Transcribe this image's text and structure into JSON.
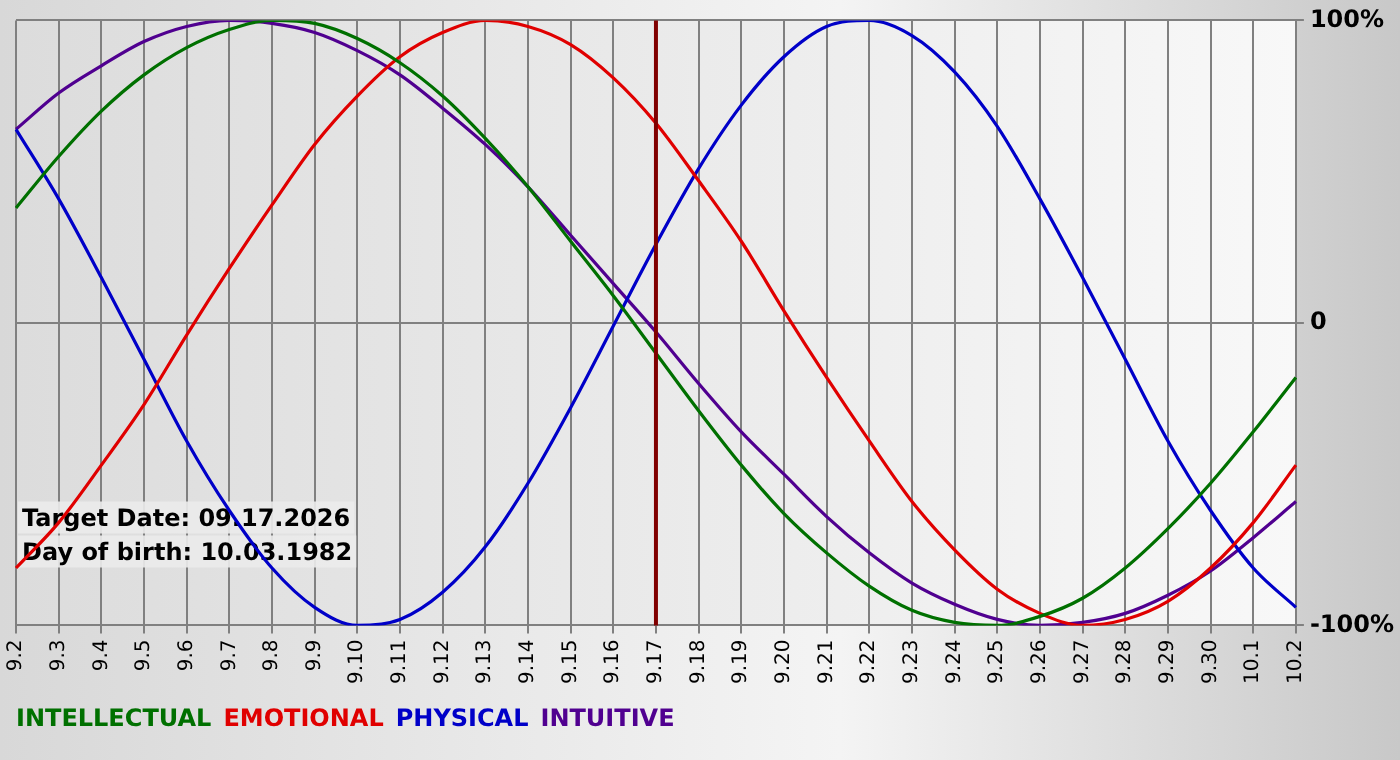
{
  "chart_data": {
    "type": "line",
    "categories": [
      "9.2",
      "9.3",
      "9.4",
      "9.5",
      "9.6",
      "9.7",
      "9.8",
      "9.9",
      "9.10",
      "9.11",
      "9.12",
      "9.13",
      "9.14",
      "9.15",
      "9.16",
      "9.17",
      "9.18",
      "9.19",
      "9.20",
      "9.21",
      "9.22",
      "9.23",
      "9.24",
      "9.25",
      "9.26",
      "9.27",
      "9.28",
      "9.29",
      "9.30",
      "10.1",
      "10.2"
    ],
    "series": [
      {
        "name": "INTELLECTUAL",
        "color": "#007000",
        "values": [
          38,
          55,
          70,
          82,
          91,
          97,
          100,
          99,
          94,
          86,
          75,
          61,
          45,
          27,
          9,
          -10,
          -29,
          -47,
          -63,
          -76,
          -87,
          -95,
          -99,
          -100,
          -97,
          -91,
          -81,
          -68,
          -53,
          -36,
          -18
        ]
      },
      {
        "name": "EMOTIONAL",
        "color": "#e00000",
        "values": [
          -81,
          -66,
          -47,
          -27,
          -4,
          18,
          39,
          59,
          75,
          88,
          96,
          100,
          98,
          92,
          81,
          66,
          47,
          27,
          4,
          -18,
          -39,
          -59,
          -75,
          -88,
          -96,
          -100,
          -98,
          -92,
          -81,
          -66,
          -47
        ]
      },
      {
        "name": "PHYSICAL",
        "color": "#0000c8",
        "values": [
          64,
          41,
          15,
          -12,
          -39,
          -62,
          -81,
          -94,
          -100,
          -98,
          -89,
          -74,
          -53,
          -28,
          -1,
          26,
          51,
          72,
          88,
          98,
          100,
          95,
          83,
          65,
          41,
          15,
          -12,
          -39,
          -62,
          -81,
          -94
        ]
      },
      {
        "name": "INTUITIVE",
        "color": "#500090",
        "values": [
          64,
          76,
          85,
          93,
          98,
          100,
          99,
          96,
          90,
          82,
          71,
          59,
          45,
          29,
          13,
          -3,
          -20,
          -36,
          -50,
          -64,
          -76,
          -86,
          -93,
          -98,
          -100,
          -99,
          -96,
          -90,
          -82,
          -71,
          -59
        ]
      }
    ],
    "ylim": [
      -100,
      100
    ],
    "yticks": [
      {
        "value": -100,
        "label": "-100%"
      },
      {
        "value": 0,
        "label": "0"
      },
      {
        "value": 100,
        "label": "100%"
      }
    ],
    "grid": true,
    "legend": "bottom",
    "marker": "none",
    "line_style": "solid",
    "ref_lines": [
      {
        "axis": "x",
        "value": "9.17",
        "color": "#800000"
      }
    ],
    "annotations": [
      "Target Date: 09.17.2026",
      "Day of birth: 10.03.1982"
    ]
  }
}
